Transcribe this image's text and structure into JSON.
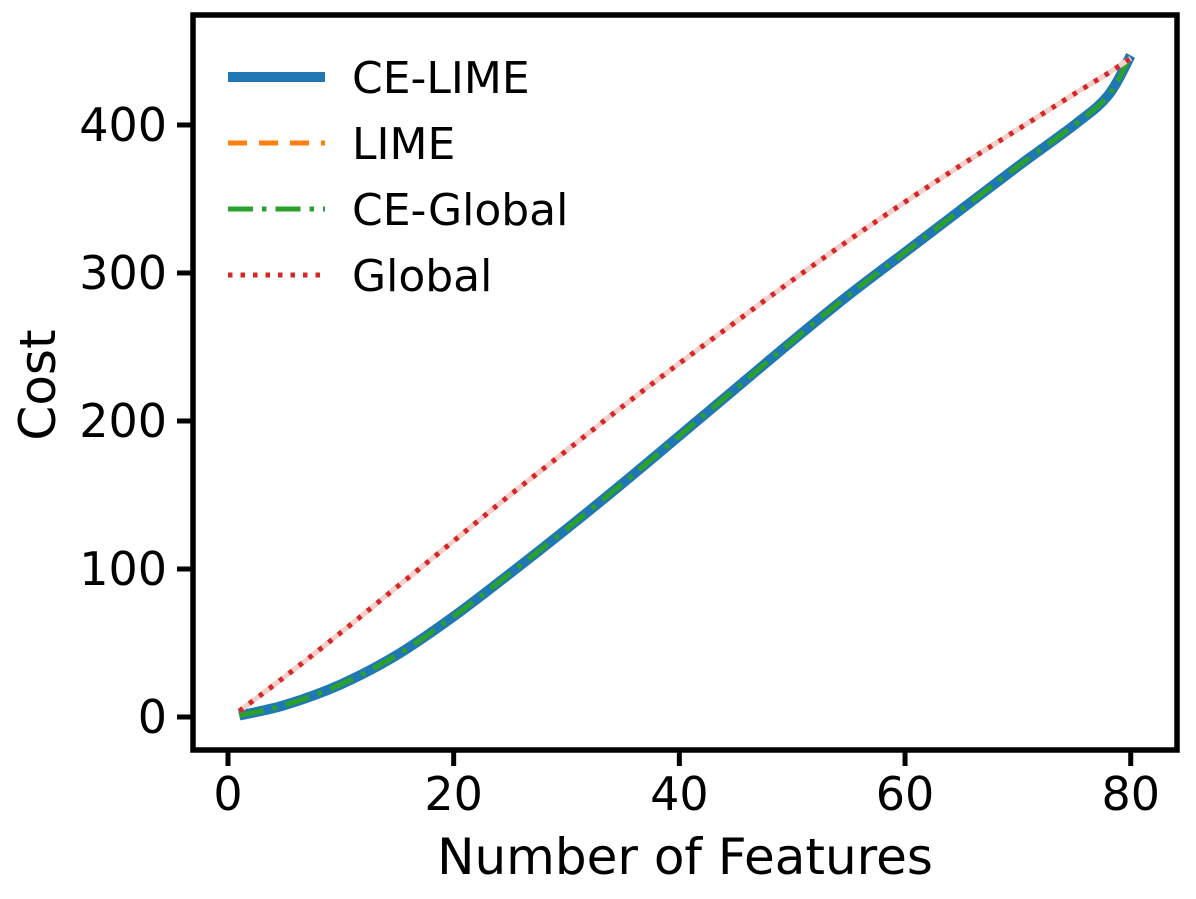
{
  "chart_data": {
    "type": "line",
    "title": "",
    "xlabel": "Number of Features",
    "ylabel": "Cost",
    "xlim": [
      -3.1,
      84.1
    ],
    "ylim": [
      -22.3,
      474.3
    ],
    "x_ticks": [
      0,
      20,
      40,
      60,
      80
    ],
    "y_ticks": [
      0,
      100,
      200,
      300,
      400
    ],
    "grid": false,
    "legend_position": "upper-left",
    "axis_color": "#000000",
    "background": "#ffffff",
    "x": [
      1,
      5,
      10,
      15,
      20,
      25,
      30,
      35,
      40,
      45,
      50,
      55,
      60,
      65,
      70,
      75,
      78,
      80
    ],
    "series": [
      {
        "name": "CE-LIME",
        "color": "#1f77b4",
        "style": "solid",
        "line_width": 10,
        "values": [
          1,
          8,
          22,
          42,
          68,
          97,
          127,
          158,
          190,
          222,
          254,
          285,
          314,
          343,
          372,
          400,
          420,
          447
        ]
      },
      {
        "name": "LIME",
        "color": "#ff7f0e",
        "style": "dashed",
        "line_width": 5,
        "underlay_color": "#fde3c8",
        "values": [
          4,
          27,
          57,
          88,
          119,
          150,
          180,
          210,
          239,
          267,
          295,
          322,
          348,
          373,
          397,
          421,
          435,
          445
        ]
      },
      {
        "name": "CE-Global",
        "color": "#2ca02c",
        "style": "dashdot",
        "line_width": 5,
        "values": [
          1,
          8,
          22,
          42,
          68,
          97,
          127,
          158,
          190,
          222,
          254,
          285,
          314,
          343,
          372,
          400,
          420,
          447
        ]
      },
      {
        "name": "Global",
        "color": "#d62728",
        "style": "dotted",
        "line_width": 5,
        "underlay_color": "#f6d0cd",
        "values": [
          4,
          27,
          57,
          88,
          119,
          150,
          180,
          210,
          239,
          267,
          295,
          322,
          348,
          373,
          397,
          421,
          435,
          445
        ]
      }
    ]
  }
}
